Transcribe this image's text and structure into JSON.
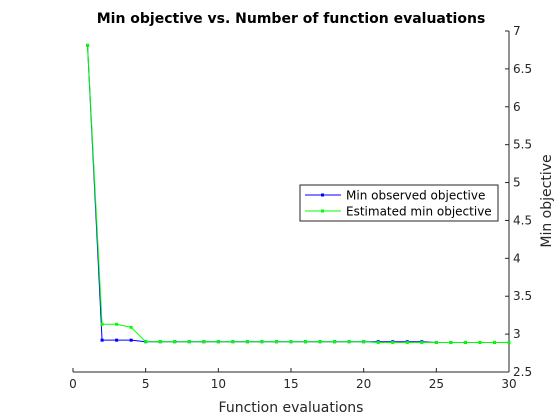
{
  "chart_data": {
    "type": "line",
    "title": "Min objective vs. Number of function evaluations",
    "xlabel": "Function evaluations",
    "ylabel": "Min objective",
    "xlim": [
      0,
      30
    ],
    "ylim": [
      2.5,
      7
    ],
    "xticks": [
      0,
      5,
      10,
      15,
      20,
      25,
      30
    ],
    "yticks": [
      2.5,
      3,
      3.5,
      4,
      4.5,
      5,
      5.5,
      6,
      6.5,
      7
    ],
    "yaxis_location": "right",
    "grid": false,
    "legend_position": "right-middle",
    "series": [
      {
        "name": "Min observed objective",
        "color": "#0000ff",
        "x": [
          1,
          2,
          3,
          4,
          5,
          6,
          7,
          8,
          9,
          10,
          11,
          12,
          13,
          14,
          15,
          16,
          17,
          18,
          19,
          20,
          21,
          22,
          23,
          24,
          25,
          26,
          27,
          28,
          29,
          30
        ],
        "y": [
          6.81,
          2.92,
          2.92,
          2.92,
          2.9,
          2.9,
          2.9,
          2.9,
          2.9,
          2.9,
          2.9,
          2.9,
          2.9,
          2.9,
          2.9,
          2.9,
          2.9,
          2.9,
          2.9,
          2.9,
          2.9,
          2.9,
          2.9,
          2.9,
          2.89,
          2.89,
          2.89,
          2.89,
          2.89,
          2.89
        ]
      },
      {
        "name": "Estimated min objective",
        "color": "#00ff00",
        "x": [
          1,
          2,
          3,
          4,
          5,
          6,
          7,
          8,
          9,
          10,
          11,
          12,
          13,
          14,
          15,
          16,
          17,
          18,
          19,
          20,
          21,
          22,
          23,
          24,
          25,
          26,
          27,
          28,
          29,
          30
        ],
        "y": [
          6.81,
          3.13,
          3.13,
          3.09,
          2.9,
          2.9,
          2.9,
          2.9,
          2.9,
          2.9,
          2.9,
          2.9,
          2.9,
          2.9,
          2.9,
          2.9,
          2.9,
          2.9,
          2.9,
          2.9,
          2.89,
          2.89,
          2.89,
          2.89,
          2.89,
          2.89,
          2.89,
          2.89,
          2.89,
          2.89
        ]
      }
    ]
  }
}
